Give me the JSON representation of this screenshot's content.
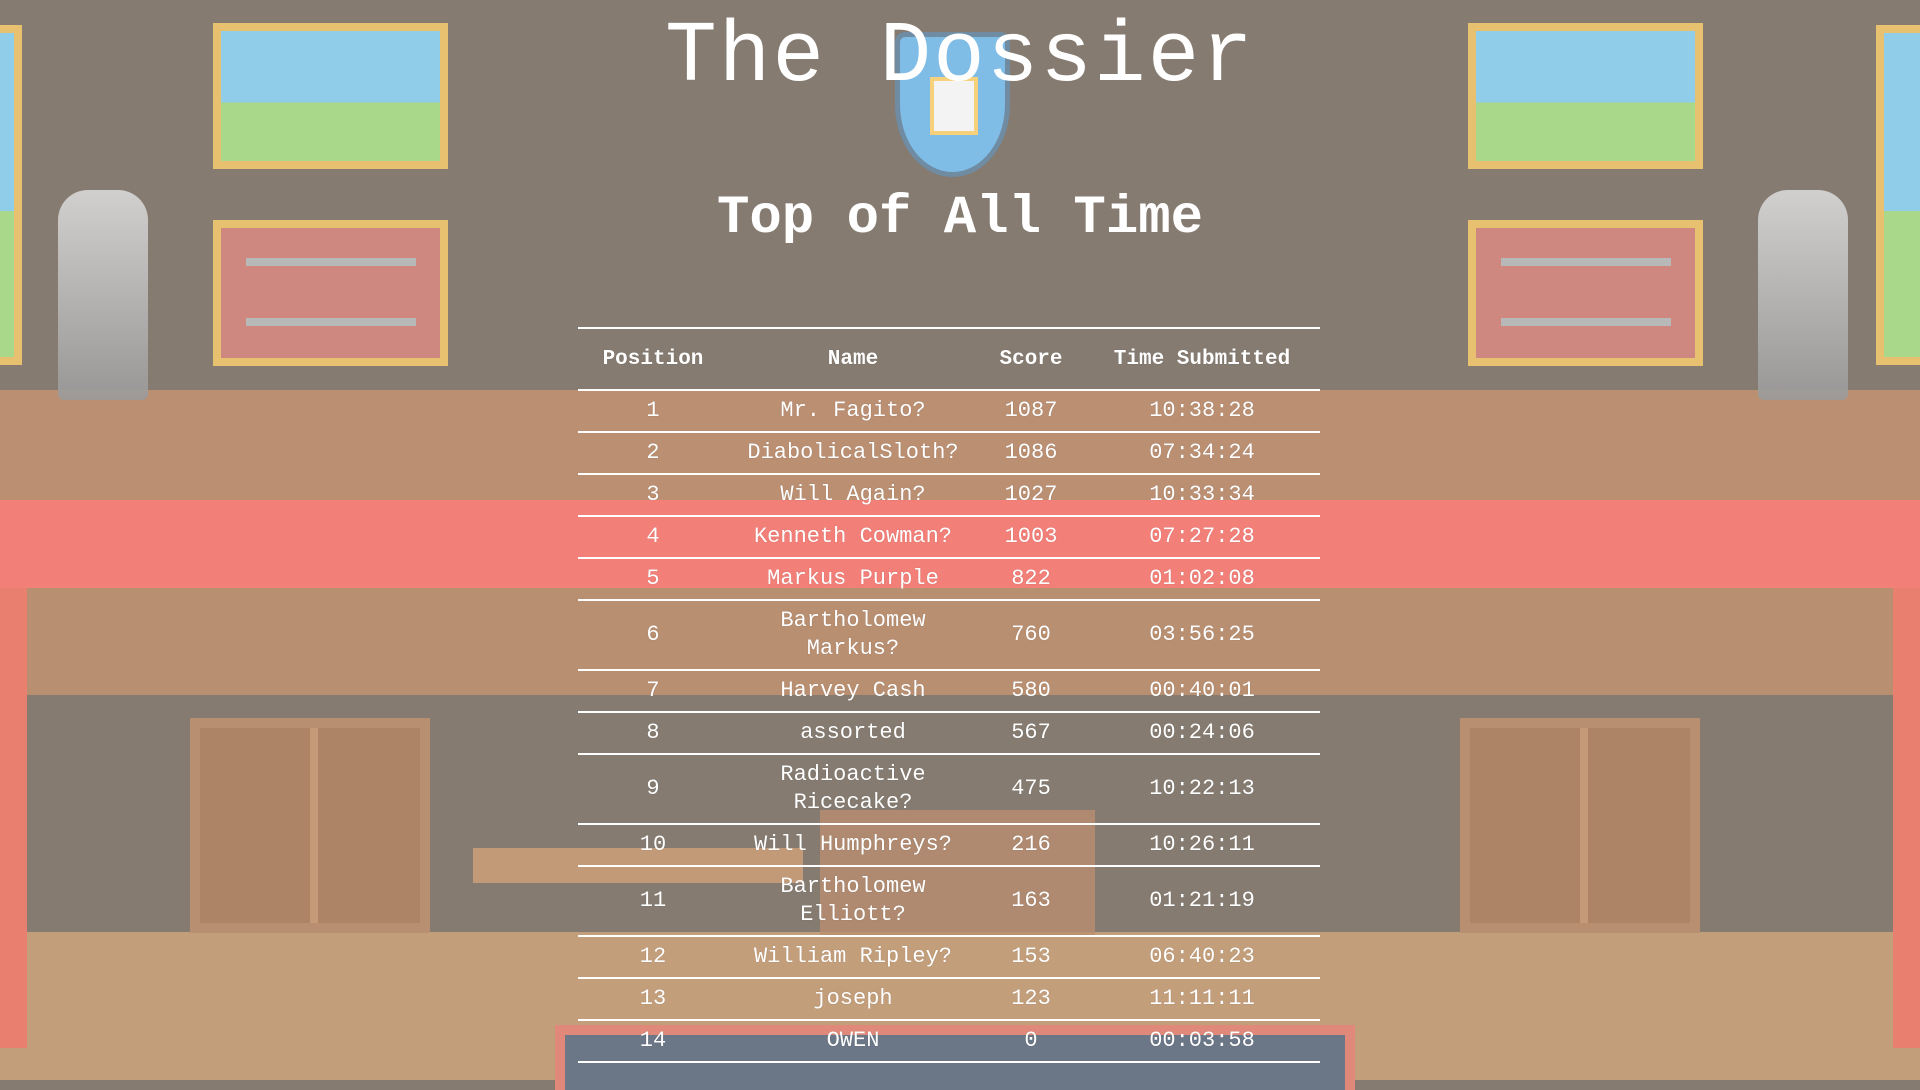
{
  "title": "The Dossier",
  "subtitle": "Top of All Time",
  "leaderboard": {
    "headers": [
      "Position",
      "Name",
      "Score",
      "Time Submitted"
    ],
    "rows": [
      {
        "position": "1",
        "name": "Mr. Fagito?",
        "score": "1087",
        "time": "10:38:28"
      },
      {
        "position": "2",
        "name": "DiabolicalSloth?",
        "score": "1086",
        "time": "07:34:24"
      },
      {
        "position": "3",
        "name": "Will Again?",
        "score": "1027",
        "time": "10:33:34"
      },
      {
        "position": "4",
        "name": "Kenneth Cowman?",
        "score": "1003",
        "time": "07:27:28"
      },
      {
        "position": "5",
        "name": "Markus Purple",
        "score": "822",
        "time": "01:02:08"
      },
      {
        "position": "6",
        "name": "Bartholomew Markus?",
        "score": "760",
        "time": "03:56:25"
      },
      {
        "position": "7",
        "name": "Harvey Cash",
        "score": "580",
        "time": "00:40:01"
      },
      {
        "position": "8",
        "name": "assorted",
        "score": "567",
        "time": "00:24:06"
      },
      {
        "position": "9",
        "name": "Radioactive Ricecake?",
        "score": "475",
        "time": "10:22:13"
      },
      {
        "position": "10",
        "name": "Will Humphreys?",
        "score": "216",
        "time": "10:26:11"
      },
      {
        "position": "11",
        "name": "Bartholomew Elliott?",
        "score": "163",
        "time": "01:21:19"
      },
      {
        "position": "12",
        "name": "William Ripley?",
        "score": "153",
        "time": "06:40:23"
      },
      {
        "position": "13",
        "name": "joseph",
        "score": "123",
        "time": "11:11:11"
      },
      {
        "position": "14",
        "name": "OWEN",
        "score": "0",
        "time": "00:03:58"
      }
    ]
  },
  "colors": {
    "wall": "#857b71",
    "floor": "#ba8f72",
    "red_band": "#f27f78",
    "frame": "#e7c070",
    "text": "#ffffff"
  }
}
